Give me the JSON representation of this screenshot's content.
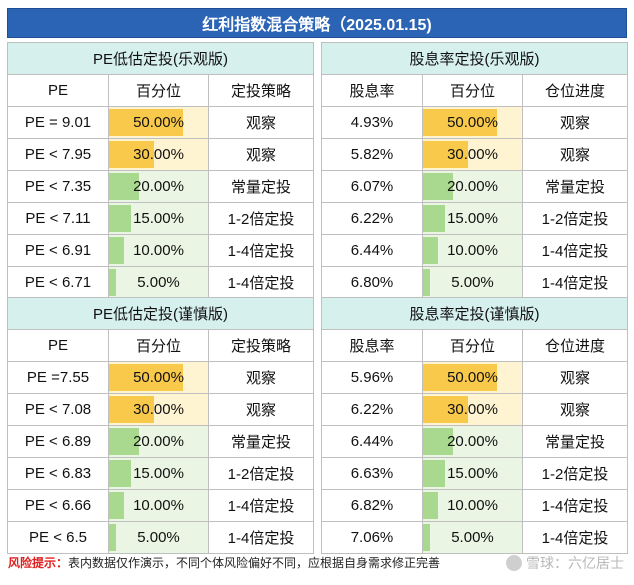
{
  "title": "红利指数混合策略（2025.01.15)",
  "colors": {
    "hot": "#f9c94b",
    "hot_bg": "#fff4d2",
    "cool": "#a9d98f",
    "cool_bg": "#eaf5e3"
  },
  "panels": [
    {
      "title": "PE低估定投(乐观版)",
      "headers": [
        "PE",
        "百分位",
        "定投策略"
      ],
      "rows": [
        {
          "metric": "PE = 9.01",
          "pct_label": "50.00%",
          "pct": 50,
          "plan": "观察"
        },
        {
          "metric": "PE < 7.95",
          "pct_label": "30.00%",
          "pct": 30,
          "plan": "观察"
        },
        {
          "metric": "PE < 7.35",
          "pct_label": "20.00%",
          "pct": 20,
          "plan": "常量定投"
        },
        {
          "metric": "PE < 7.11",
          "pct_label": "15.00%",
          "pct": 15,
          "plan": "1-2倍定投"
        },
        {
          "metric": "PE < 6.91",
          "pct_label": "10.00%",
          "pct": 10,
          "plan": "1-4倍定投"
        },
        {
          "metric": "PE < 6.71",
          "pct_label": "5.00%",
          "pct": 5,
          "plan": "1-4倍定投"
        }
      ]
    },
    {
      "title": "股息率定投(乐观版)",
      "headers": [
        "股息率",
        "百分位",
        "仓位进度"
      ],
      "rows": [
        {
          "metric": "4.93%",
          "pct_label": "50.00%",
          "pct": 50,
          "plan": "观察"
        },
        {
          "metric": "5.82%",
          "pct_label": "30.00%",
          "pct": 30,
          "plan": "观察"
        },
        {
          "metric": "6.07%",
          "pct_label": "20.00%",
          "pct": 20,
          "plan": "常量定投"
        },
        {
          "metric": "6.22%",
          "pct_label": "15.00%",
          "pct": 15,
          "plan": "1-2倍定投"
        },
        {
          "metric": "6.44%",
          "pct_label": "10.00%",
          "pct": 10,
          "plan": "1-4倍定投"
        },
        {
          "metric": "6.80%",
          "pct_label": "5.00%",
          "pct": 5,
          "plan": "1-4倍定投"
        }
      ]
    },
    {
      "title": "PE低估定投(谨慎版)",
      "headers": [
        "PE",
        "百分位",
        "定投策略"
      ],
      "rows": [
        {
          "metric": "PE =7.55",
          "pct_label": "50.00%",
          "pct": 50,
          "plan": "观察"
        },
        {
          "metric": "PE < 7.08",
          "pct_label": "30.00%",
          "pct": 30,
          "plan": "观察"
        },
        {
          "metric": "PE < 6.89",
          "pct_label": "20.00%",
          "pct": 20,
          "plan": "常量定投"
        },
        {
          "metric": "PE < 6.83",
          "pct_label": "15.00%",
          "pct": 15,
          "plan": "1-2倍定投"
        },
        {
          "metric": "PE < 6.66",
          "pct_label": "10.00%",
          "pct": 10,
          "plan": "1-4倍定投"
        },
        {
          "metric": "PE < 6.5",
          "pct_label": "5.00%",
          "pct": 5,
          "plan": "1-4倍定投"
        }
      ]
    },
    {
      "title": "股息率定投(谨慎版)",
      "headers": [
        "股息率",
        "百分位",
        "仓位进度"
      ],
      "rows": [
        {
          "metric": "5.96%",
          "pct_label": "50.00%",
          "pct": 50,
          "plan": "观察"
        },
        {
          "metric": "6.22%",
          "pct_label": "30.00%",
          "pct": 30,
          "plan": "观察"
        },
        {
          "metric": "6.44%",
          "pct_label": "20.00%",
          "pct": 20,
          "plan": "常量定投"
        },
        {
          "metric": "6.63%",
          "pct_label": "15.00%",
          "pct": 15,
          "plan": "1-2倍定投"
        },
        {
          "metric": "6.82%",
          "pct_label": "10.00%",
          "pct": 10,
          "plan": "1-4倍定投"
        },
        {
          "metric": "7.06%",
          "pct_label": "5.00%",
          "pct": 5,
          "plan": "1-4倍定投"
        }
      ]
    }
  ],
  "note": {
    "label": "风险提示：",
    "text": "表内数据仅作演示，不同个体风险偏好不同，应根据自身需求修正完善"
  },
  "watermark": "雪球：六亿居士"
}
